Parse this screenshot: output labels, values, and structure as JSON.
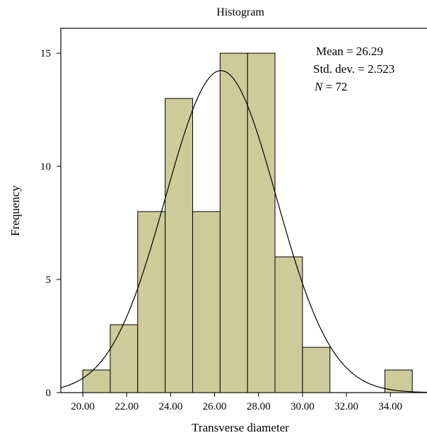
{
  "chart_data": {
    "type": "bar",
    "title": "Histogram",
    "xlabel": "Transverse diameter",
    "ylabel": "Frequency",
    "xlim": [
      19.0,
      35.7
    ],
    "ylim": [
      0,
      16.1
    ],
    "bin_edges": [
      20.0,
      21.25,
      22.5,
      23.75,
      25.0,
      26.25,
      27.5,
      28.75,
      30.0,
      31.25,
      32.5,
      33.75,
      35.0
    ],
    "values": [
      1,
      3,
      8,
      13,
      8,
      15,
      15,
      6,
      2,
      0,
      0,
      1
    ],
    "bar_color": "#cdcb99",
    "x_ticks": [
      20,
      22,
      24,
      26,
      28,
      30,
      32,
      34
    ],
    "x_tick_labels": [
      "20.00",
      "22.00",
      "24.00",
      "26.00",
      "28.00",
      "30.00",
      "32.00",
      "34.00"
    ],
    "y_ticks": [
      0,
      5,
      10,
      15
    ],
    "y_tick_labels": [
      "0",
      "5",
      "10",
      "15"
    ],
    "normal_curve": {
      "mean": 26.29,
      "std": 2.523,
      "n": 72,
      "bin_width": 1.25
    },
    "stats": {
      "mean_label": "Mean = 26.29",
      "std_label": "Std. dev. = 2.523",
      "n_prefix": "N",
      "n_suffix": " = 72"
    }
  }
}
